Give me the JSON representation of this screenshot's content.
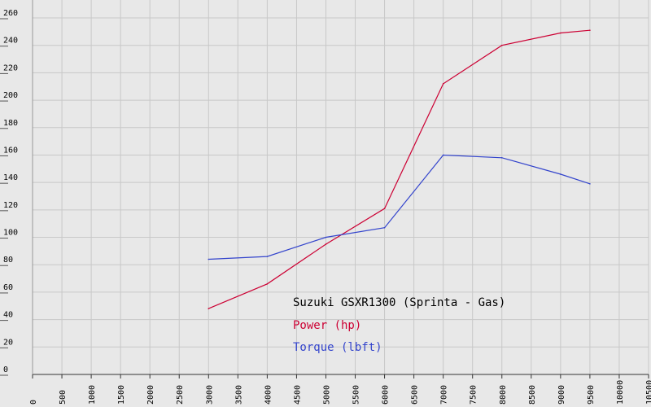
{
  "chart_data": {
    "type": "line",
    "title": "Suzuki GSXR1300 (Sprinta - Gas)",
    "xlabel": "",
    "ylabel": "",
    "xlim": [
      0,
      10500
    ],
    "ylim": [
      0,
      260
    ],
    "x_ticks": [
      0,
      500,
      1000,
      1500,
      2000,
      2500,
      3000,
      3500,
      4000,
      4500,
      5000,
      5500,
      6000,
      6500,
      7000,
      7500,
      8000,
      8500,
      9000,
      9500,
      10000,
      10500
    ],
    "y_ticks": [
      0,
      20,
      40,
      60,
      80,
      100,
      120,
      140,
      160,
      180,
      200,
      220,
      240,
      260
    ],
    "grid": true,
    "legend_position": "center",
    "series": [
      {
        "name": "Power (hp)",
        "color": "#cc0033",
        "x": [
          3000,
          4000,
          5000,
          6000,
          7000,
          8000,
          9000,
          9500
        ],
        "values": [
          48,
          66,
          95,
          121,
          212,
          240,
          249,
          251
        ]
      },
      {
        "name": "Torque (lbft)",
        "color": "#3344cc",
        "x": [
          3000,
          4000,
          5000,
          6000,
          7000,
          8000,
          9000,
          9500
        ],
        "values": [
          84,
          86,
          100,
          107,
          160,
          158,
          146,
          139
        ]
      }
    ]
  }
}
